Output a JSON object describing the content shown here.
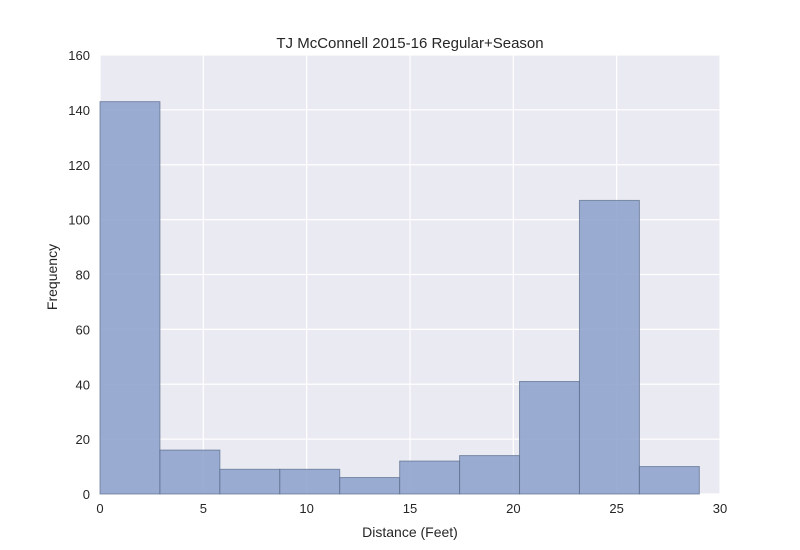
{
  "chart_data": {
    "type": "bar",
    "title": "TJ McConnell 2015-16 Regular+Season",
    "xlabel": "Distance (Feet)",
    "ylabel": "Frequency",
    "xlim": [
      0,
      30
    ],
    "ylim": [
      0,
      160
    ],
    "xticks": [
      "0",
      "5",
      "10",
      "15",
      "20",
      "25",
      "30"
    ],
    "yticks": [
      "0",
      "20",
      "40",
      "60",
      "80",
      "100",
      "120",
      "140",
      "160"
    ],
    "grid": true,
    "legend": "none",
    "colors": {
      "bar": "#8ea2cd",
      "edge": "#5a6e8c",
      "background": "#eaeaf2",
      "grid": "#ffffff"
    },
    "bins": [
      {
        "x0": 0.0,
        "x1": 2.9,
        "value": 143
      },
      {
        "x0": 2.9,
        "x1": 5.8,
        "value": 16
      },
      {
        "x0": 5.8,
        "x1": 8.7,
        "value": 9
      },
      {
        "x0": 8.7,
        "x1": 11.6,
        "value": 9
      },
      {
        "x0": 11.6,
        "x1": 14.5,
        "value": 6
      },
      {
        "x0": 14.5,
        "x1": 17.4,
        "value": 12
      },
      {
        "x0": 17.4,
        "x1": 20.3,
        "value": 14
      },
      {
        "x0": 20.3,
        "x1": 23.2,
        "value": 41
      },
      {
        "x0": 23.2,
        "x1": 26.1,
        "value": 107
      },
      {
        "x0": 26.1,
        "x1": 29.0,
        "value": 10
      }
    ]
  }
}
